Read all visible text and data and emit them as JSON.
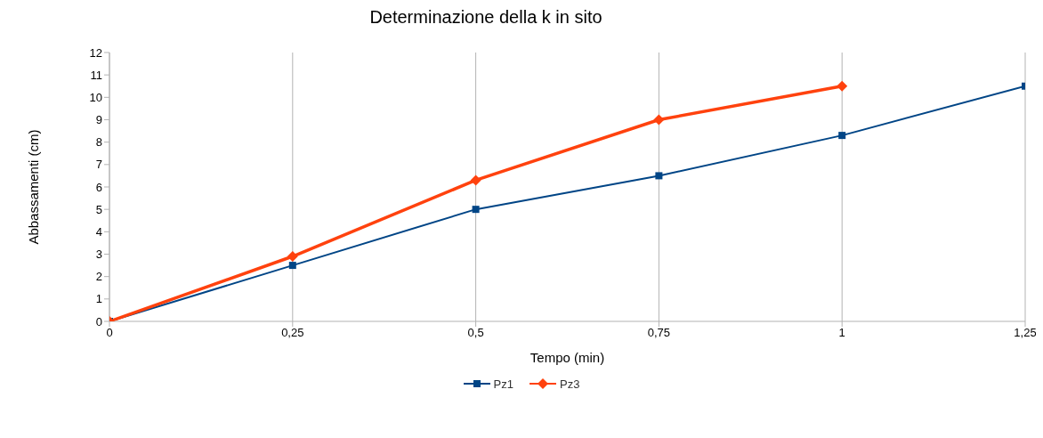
{
  "chart_data": {
    "type": "line",
    "title": "Determinazione della k in sito",
    "xlabel": "Tempo (min)",
    "ylabel": "Abbassamenti (cm)",
    "series": [
      {
        "name": "Pz1",
        "color": "#004586",
        "marker": "square",
        "x": [
          0,
          0.25,
          0.5,
          0.75,
          1,
          1.25
        ],
        "values": [
          0,
          2.5,
          5,
          6.5,
          8.3,
          10.5
        ]
      },
      {
        "name": "Pz3",
        "color": "#ff420e",
        "marker": "diamond",
        "x": [
          0,
          0.25,
          0.5,
          0.75,
          1
        ],
        "values": [
          0,
          2.9,
          6.3,
          9,
          10.5
        ]
      }
    ],
    "xlim": [
      0,
      1.25
    ],
    "xticks": [
      0,
      {
        "value": 0.25,
        "label": "0,25"
      },
      {
        "value": 0.5,
        "label": "0,5"
      },
      {
        "value": 0.75,
        "label": "0,75"
      },
      1,
      {
        "value": 1.25,
        "label": "1,25"
      }
    ],
    "ylim": [
      0,
      12
    ],
    "yticks": [
      0,
      1,
      2,
      3,
      4,
      5,
      6,
      7,
      8,
      9,
      10,
      11,
      12
    ],
    "grid": "x",
    "legend": "bottom",
    "line_style": "solid"
  }
}
